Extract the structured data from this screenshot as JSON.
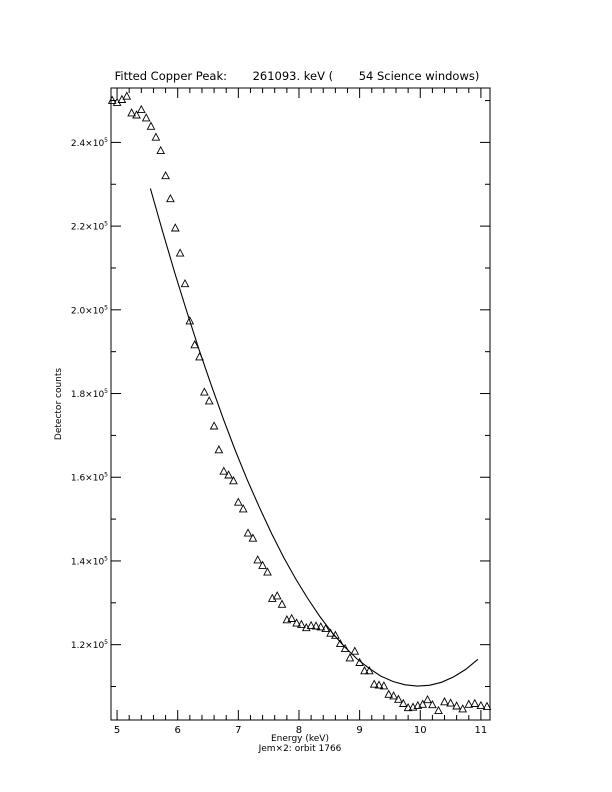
{
  "chart_data": {
    "type": "scatter",
    "title": "Fitted Copper Peak:       261093. keV (       54 Science windows)",
    "xlabel": "Energy (keV)",
    "ylabel": "Detector counts",
    "footer": "Jem×2: orbit 1766",
    "xlim": [
      4.9,
      11.15
    ],
    "ylim": [
      102000,
      253000
    ],
    "x_ticks": [
      5,
      6,
      7,
      8,
      9,
      10,
      11
    ],
    "x_tick_labels": [
      "5",
      "6",
      "7",
      "8",
      "9",
      "10",
      "11"
    ],
    "y_ticks": [
      120000,
      140000,
      160000,
      180000,
      200000,
      220000,
      240000
    ],
    "y_tick_labels": [
      {
        "mantissa": "1.2×10",
        "exp": "5"
      },
      {
        "mantissa": "1.4×10",
        "exp": "5"
      },
      {
        "mantissa": "1.6×10",
        "exp": "5"
      },
      {
        "mantissa": "1.8×10",
        "exp": "5"
      },
      {
        "mantissa": "2.0×10",
        "exp": "5"
      },
      {
        "mantissa": "2.2×10",
        "exp": "5"
      },
      {
        "mantissa": "2.4×10",
        "exp": "5"
      }
    ],
    "grid": false,
    "series": [
      {
        "marker": "triangle",
        "x": [
          4.92,
          5.0,
          5.08,
          5.16,
          5.24,
          5.32,
          5.4,
          5.48,
          5.56,
          5.64,
          5.72,
          5.8,
          5.88,
          5.96,
          6.04,
          6.12,
          6.2,
          6.28,
          6.36,
          6.44,
          6.52,
          6.6,
          6.68,
          6.76,
          6.84,
          6.92,
          7.0,
          7.08,
          7.16,
          7.24,
          7.32,
          7.4,
          7.48,
          7.56,
          7.64,
          7.72,
          7.8,
          7.88,
          7.96,
          8.04,
          8.12,
          8.2,
          8.28,
          8.36,
          8.44,
          8.52,
          8.6,
          8.68,
          8.76,
          8.84,
          8.92,
          9.0,
          9.08,
          9.16,
          9.24,
          9.32,
          9.4,
          9.48,
          9.56,
          9.64,
          9.72,
          9.8,
          9.88,
          9.96,
          10.04,
          10.12,
          10.2,
          10.3,
          10.4,
          10.5,
          10.6,
          10.7,
          10.8,
          10.9,
          11.0,
          11.1
        ],
        "y": [
          250000,
          249500,
          250200,
          251000,
          247000,
          246500,
          247800,
          245800,
          243800,
          241200,
          238000,
          232000,
          226500,
          219500,
          213500,
          206200,
          197300,
          191600,
          188700,
          180300,
          178200,
          172200,
          166500,
          161400,
          160500,
          159100,
          154000,
          152400,
          146600,
          145400,
          140200,
          138900,
          137300,
          131000,
          131600,
          129600,
          125900,
          126200,
          125100,
          124800,
          124000,
          124500,
          124400,
          124200,
          123800,
          122700,
          122200,
          120200,
          119000,
          116800,
          118400,
          115700,
          113700,
          113700,
          110500,
          110300,
          110100,
          108100,
          107700,
          106900,
          105900,
          104900,
          105000,
          105400,
          105700,
          106800,
          105600,
          104200,
          106300,
          106000,
          105300,
          104600,
          105700,
          105900,
          105400,
          105200
        ]
      },
      {
        "marker": "line",
        "x": [
          5.55,
          5.75,
          5.95,
          6.15,
          6.35,
          6.55,
          6.75,
          6.95,
          7.15,
          7.35,
          7.55,
          7.75,
          7.95,
          8.15,
          8.35,
          8.55,
          8.75,
          8.95,
          9.15,
          9.35,
          9.55,
          9.75,
          9.95,
          10.15,
          10.35,
          10.55,
          10.75,
          10.95
        ],
        "y": [
          229000,
          218800,
          208900,
          199600,
          190600,
          182100,
          174000,
          166400,
          159300,
          152700,
          146500,
          140800,
          135600,
          130900,
          126600,
          122800,
          119500,
          116700,
          114400,
          112500,
          111200,
          110400,
          110100,
          110300,
          111000,
          112300,
          114100,
          116500
        ]
      }
    ]
  }
}
